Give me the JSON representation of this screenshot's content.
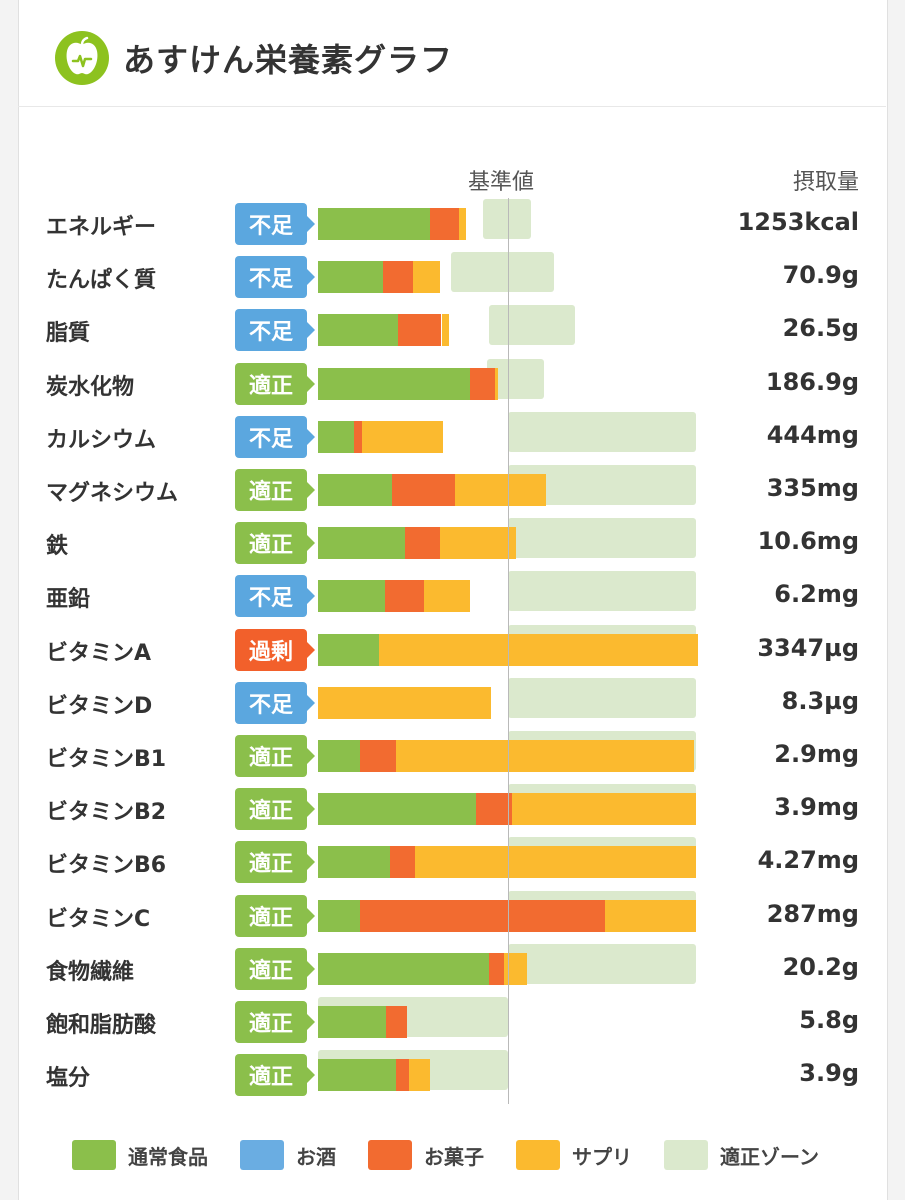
{
  "header": {
    "title": "あすけん栄養素グラフ",
    "logo_icon": "apple-scale-icon"
  },
  "columns": {
    "reference": "基準値",
    "intake": "摂取量"
  },
  "legend": [
    {
      "label": "通常食品",
      "color": "#8bbf4b"
    },
    {
      "label": "お酒",
      "color": "#6aade2"
    },
    {
      "label": "お菓子",
      "color": "#f26b30"
    },
    {
      "label": "サプリ",
      "color": "#fbba2f"
    },
    {
      "label": "適正ゾーン",
      "color": "#dbe9cd"
    }
  ],
  "status_colors": {
    "不足": "#5ba7df",
    "適正": "#8bbf4b",
    "過剰": "#f2602b"
  },
  "chart_data": {
    "type": "bar",
    "orientation": "horizontal",
    "stacked": true,
    "value_unit": "% of reference value",
    "reference_value": 100,
    "series_names": [
      "通常食品",
      "お酒",
      "お菓子",
      "サプリ"
    ],
    "nutrients": [
      {
        "name": "エネルギー",
        "status": "不足",
        "intake": "1253kcal",
        "segments": [
          59,
          0,
          15,
          4
        ],
        "zone": [
          -13,
          12
        ]
      },
      {
        "name": "たんぱく質",
        "status": "不足",
        "intake": "70.9g",
        "segments": [
          34,
          0,
          16,
          14
        ],
        "zone": [
          -30,
          24
        ]
      },
      {
        "name": "脂質",
        "status": "不足",
        "intake": "26.5g",
        "segments": [
          42,
          0,
          23,
          4
        ],
        "zone": [
          -10,
          35
        ]
      },
      {
        "name": "炭水化物",
        "status": "適正",
        "intake": "186.9g",
        "segments": [
          80,
          0,
          13,
          2
        ],
        "zone": [
          -11,
          19
        ]
      },
      {
        "name": "カルシウム",
        "status": "不足",
        "intake": "444mg",
        "segments": [
          19,
          0,
          4,
          43
        ],
        "zone": [
          0,
          99
        ]
      },
      {
        "name": "マグネシウム",
        "status": "適正",
        "intake": "335mg",
        "segments": [
          39,
          0,
          33,
          48
        ],
        "zone": [
          0,
          99
        ]
      },
      {
        "name": "鉄",
        "status": "適正",
        "intake": "10.6mg",
        "segments": [
          46,
          0,
          18,
          40
        ],
        "zone": [
          0,
          99
        ]
      },
      {
        "name": "亜鉛",
        "status": "不足",
        "intake": "6.2mg",
        "segments": [
          35,
          0,
          21,
          24
        ],
        "zone": [
          0,
          99
        ]
      },
      {
        "name": "ビタミンA",
        "status": "過剰",
        "intake": "3347µg",
        "segments": [
          32,
          0,
          0,
          168
        ],
        "zone": [
          0,
          99
        ]
      },
      {
        "name": "ビタミンD",
        "status": "不足",
        "intake": "8.3µg",
        "segments": [
          0,
          0,
          0,
          91
        ],
        "zone": [
          0,
          99
        ]
      },
      {
        "name": "ビタミンB1",
        "status": "適正",
        "intake": "2.9mg",
        "segments": [
          22,
          0,
          19,
          157
        ],
        "zone": [
          0,
          99
        ]
      },
      {
        "name": "ビタミンB2",
        "status": "適正",
        "intake": "3.9mg",
        "segments": [
          83,
          0,
          19,
          97
        ],
        "zone": [
          0,
          99
        ]
      },
      {
        "name": "ビタミンB6",
        "status": "適正",
        "intake": "4.27mg",
        "segments": [
          38,
          0,
          13,
          148
        ],
        "zone": [
          0,
          99
        ]
      },
      {
        "name": "ビタミンC",
        "status": "適正",
        "intake": "287mg",
        "segments": [
          22,
          0,
          129,
          48
        ],
        "zone": [
          0,
          99
        ]
      },
      {
        "name": "食物繊維",
        "status": "適正",
        "intake": "20.2g",
        "segments": [
          90,
          0,
          8,
          12
        ],
        "zone": [
          0,
          99
        ]
      },
      {
        "name": "飽和脂肪酸",
        "status": "適正",
        "intake": "5.8g",
        "segments": [
          36,
          0,
          11,
          0
        ],
        "zone": [
          -100,
          0
        ]
      },
      {
        "name": "塩分",
        "status": "適正",
        "intake": "3.9g",
        "segments": [
          41,
          0,
          7,
          11
        ],
        "zone": [
          -100,
          0
        ]
      }
    ]
  }
}
